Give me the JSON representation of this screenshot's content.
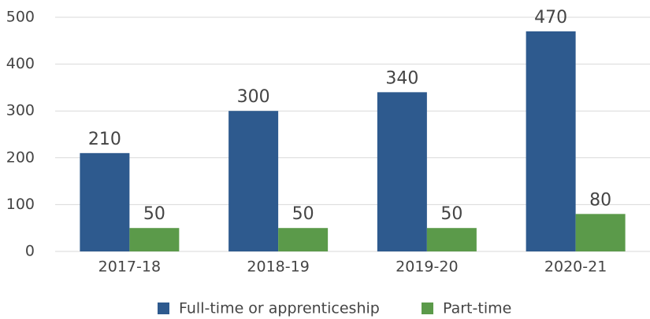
{
  "chart_data": {
    "type": "bar",
    "categories": [
      "2017-18",
      "2018-19",
      "2019-20",
      "2020-21"
    ],
    "series": [
      {
        "name": "Full-time or apprenticeship",
        "color": "#2e5a8e",
        "values": [
          210,
          300,
          340,
          470
        ]
      },
      {
        "name": "Part-time",
        "color": "#5b9a4a",
        "values": [
          50,
          50,
          50,
          80
        ]
      }
    ],
    "ylim": [
      0,
      500
    ],
    "yticks": [
      0,
      100,
      200,
      300,
      400,
      500
    ],
    "grid": true,
    "legend": "bottom"
  }
}
